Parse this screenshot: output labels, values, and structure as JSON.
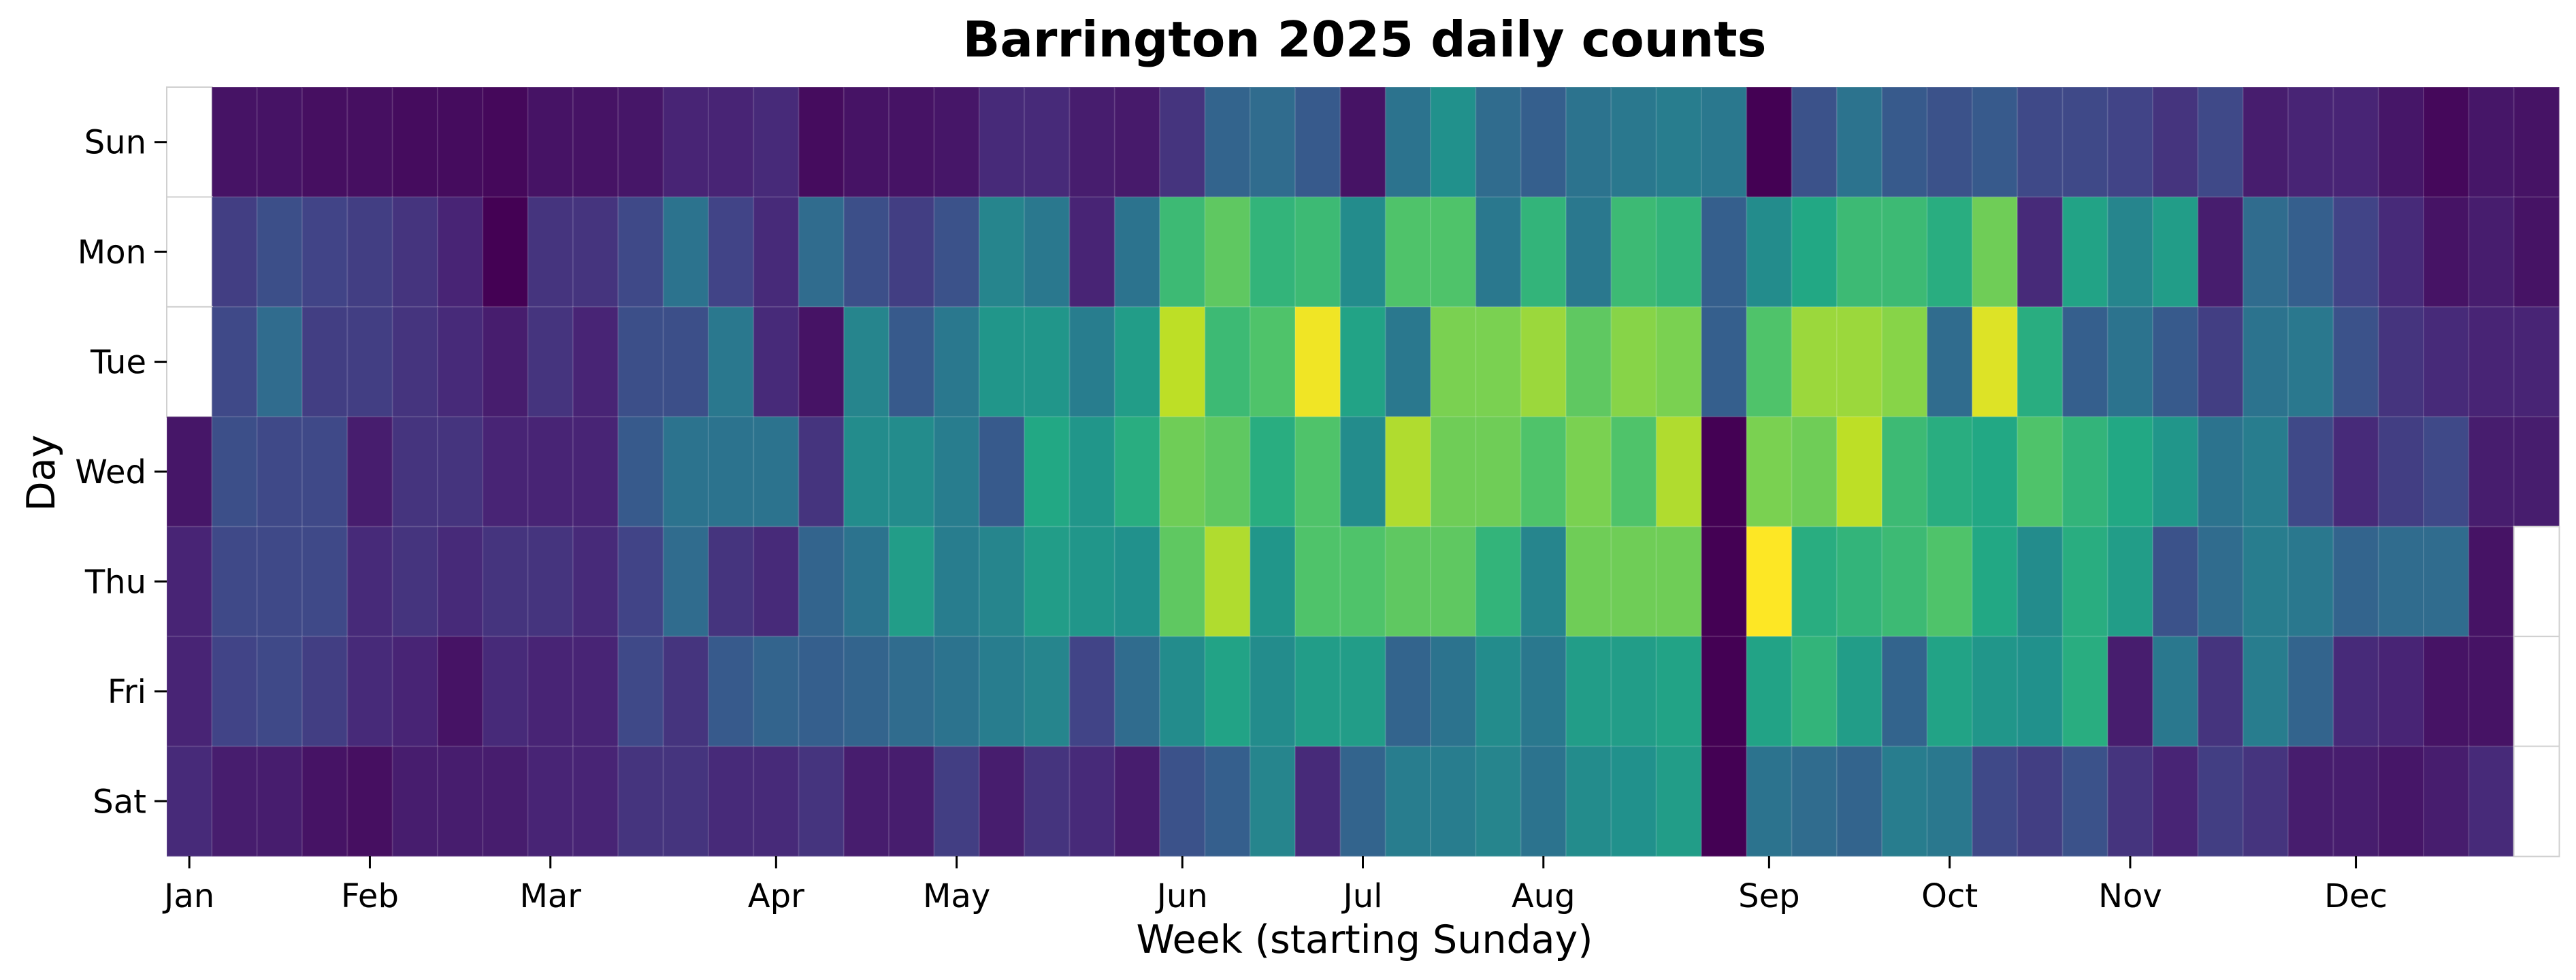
{
  "chart_data": {
    "type": "heatmap",
    "title": "Barrington 2025 daily counts",
    "xlabel": "Week (starting Sunday)",
    "ylabel": "Day",
    "colormap": "viridis",
    "grid": false,
    "legend": "none",
    "rows": [
      "Sun",
      "Mon",
      "Tue",
      "Wed",
      "Thu",
      "Fri",
      "Sat"
    ],
    "month_ticks": [
      {
        "label": "Jan",
        "week": 0
      },
      {
        "label": "Feb",
        "week": 4
      },
      {
        "label": "Mar",
        "week": 8
      },
      {
        "label": "Apr",
        "week": 13
      },
      {
        "label": "May",
        "week": 17
      },
      {
        "label": "Jun",
        "week": 22
      },
      {
        "label": "Jul",
        "week": 26
      },
      {
        "label": "Aug",
        "week": 30
      },
      {
        "label": "Sep",
        "week": 35
      },
      {
        "label": "Oct",
        "week": 39
      },
      {
        "label": "Nov",
        "week": 43
      },
      {
        "label": "Dec",
        "week": 48
      }
    ],
    "value_range": [
      0,
      1
    ],
    "weeks": 53,
    "values": [
      [
        null,
        0.05,
        0.05,
        0.04,
        0.04,
        0.03,
        0.03,
        0.02,
        0.05,
        0.05,
        0.06,
        0.1,
        0.1,
        0.12,
        0.03,
        0.05,
        0.05,
        0.06,
        0.12,
        0.12,
        0.08,
        0.07,
        0.15,
        0.32,
        0.35,
        0.28,
        0.05,
        0.38,
        0.5,
        0.35,
        0.3,
        0.38,
        0.4,
        0.42,
        0.4,
        0.0,
        0.25,
        0.38,
        0.28,
        0.25,
        0.28,
        0.22,
        0.22,
        0.2,
        0.15,
        0.22,
        0.08,
        0.1,
        0.1,
        0.06,
        0.02,
        0.06,
        0.05
      ],
      [
        null,
        0.18,
        0.24,
        0.2,
        0.18,
        0.15,
        0.1,
        0.0,
        0.15,
        0.15,
        0.22,
        0.38,
        0.2,
        0.12,
        0.35,
        0.24,
        0.18,
        0.25,
        0.45,
        0.4,
        0.1,
        0.38,
        0.68,
        0.75,
        0.65,
        0.68,
        0.48,
        0.72,
        0.72,
        0.4,
        0.65,
        0.4,
        0.68,
        0.65,
        0.3,
        0.48,
        0.6,
        0.68,
        0.68,
        0.62,
        0.78,
        0.12,
        0.58,
        0.45,
        0.55,
        0.08,
        0.35,
        0.3,
        0.2,
        0.12,
        0.05,
        0.08,
        0.05
      ],
      [
        null,
        0.22,
        0.35,
        0.18,
        0.18,
        0.15,
        0.12,
        0.08,
        0.15,
        0.1,
        0.24,
        0.24,
        0.4,
        0.12,
        0.05,
        0.45,
        0.28,
        0.4,
        0.52,
        0.52,
        0.42,
        0.55,
        0.9,
        0.68,
        0.72,
        0.98,
        0.58,
        0.4,
        0.8,
        0.8,
        0.85,
        0.75,
        0.82,
        0.8,
        0.3,
        0.72,
        0.85,
        0.85,
        0.82,
        0.35,
        0.95,
        0.62,
        0.3,
        0.38,
        0.28,
        0.18,
        0.38,
        0.4,
        0.25,
        0.15,
        0.12,
        0.1,
        0.1
      ],
      [
        0.06,
        0.24,
        0.22,
        0.22,
        0.08,
        0.15,
        0.15,
        0.1,
        0.1,
        0.1,
        0.28,
        0.38,
        0.38,
        0.38,
        0.15,
        0.48,
        0.48,
        0.42,
        0.28,
        0.6,
        0.52,
        0.62,
        0.78,
        0.75,
        0.62,
        0.72,
        0.48,
        0.88,
        0.78,
        0.78,
        0.72,
        0.8,
        0.72,
        0.88,
        0.0,
        0.8,
        0.78,
        0.9,
        0.68,
        0.62,
        0.6,
        0.72,
        0.65,
        0.6,
        0.52,
        0.38,
        0.42,
        0.22,
        0.12,
        0.18,
        0.22,
        0.08,
        0.08
      ],
      [
        0.1,
        0.22,
        0.22,
        0.22,
        0.12,
        0.15,
        0.12,
        0.15,
        0.15,
        0.12,
        0.2,
        0.35,
        0.15,
        0.12,
        0.32,
        0.38,
        0.55,
        0.42,
        0.45,
        0.55,
        0.52,
        0.5,
        0.75,
        0.88,
        0.52,
        0.72,
        0.72,
        0.75,
        0.75,
        0.65,
        0.45,
        0.78,
        0.78,
        0.78,
        0.0,
        1.0,
        0.62,
        0.65,
        0.68,
        0.72,
        0.6,
        0.48,
        0.62,
        0.55,
        0.25,
        0.35,
        0.42,
        0.4,
        0.32,
        0.35,
        0.35,
        0.05,
        null
      ],
      [
        0.1,
        0.2,
        0.22,
        0.18,
        0.12,
        0.1,
        0.05,
        0.12,
        0.1,
        0.1,
        0.22,
        0.15,
        0.28,
        0.32,
        0.3,
        0.32,
        0.35,
        0.38,
        0.42,
        0.45,
        0.2,
        0.35,
        0.48,
        0.58,
        0.48,
        0.55,
        0.55,
        0.32,
        0.38,
        0.48,
        0.4,
        0.55,
        0.55,
        0.58,
        0.0,
        0.58,
        0.65,
        0.55,
        0.32,
        0.58,
        0.52,
        0.5,
        0.62,
        0.08,
        0.4,
        0.15,
        0.42,
        0.32,
        0.12,
        0.1,
        0.05,
        0.05,
        null
      ],
      [
        0.12,
        0.08,
        0.08,
        0.05,
        0.04,
        0.08,
        0.08,
        0.08,
        0.1,
        0.1,
        0.15,
        0.15,
        0.12,
        0.12,
        0.15,
        0.08,
        0.08,
        0.18,
        0.08,
        0.15,
        0.12,
        0.08,
        0.25,
        0.3,
        0.45,
        0.12,
        0.32,
        0.42,
        0.42,
        0.45,
        0.38,
        0.48,
        0.5,
        0.55,
        0.0,
        0.38,
        0.35,
        0.32,
        0.42,
        0.4,
        0.22,
        0.18,
        0.25,
        0.15,
        0.1,
        0.18,
        0.15,
        0.08,
        0.08,
        0.06,
        0.08,
        0.12,
        null
      ]
    ]
  }
}
